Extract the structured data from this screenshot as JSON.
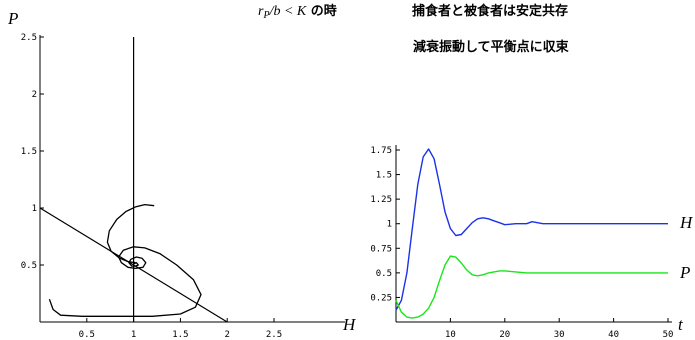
{
  "captions": {
    "condition_math": "r",
    "condition_sub": "P",
    "condition_rest": "/b < K",
    "condition_suffix": " の時",
    "line1": "捕食者と被食者は安定共存",
    "line2": "減衰振動して平衡点に収束"
  },
  "chart_data": [
    {
      "type": "line",
      "title": "",
      "xlabel": "H",
      "ylabel": "P",
      "xlim": [
        0,
        2.5
      ],
      "ylim": [
        0,
        2.5
      ],
      "xticks": [
        "0.5",
        "1",
        "1.5",
        "2",
        "2.5"
      ],
      "xtick_values": [
        0.5,
        1,
        1.5,
        2,
        2.5
      ],
      "yticks": [
        "0.5",
        "1",
        "1.5",
        "2",
        "2.5"
      ],
      "ytick_values": [
        0.5,
        1,
        1.5,
        2,
        2.5
      ],
      "equilibrium": [
        1.0,
        0.5
      ],
      "nullclines": {
        "vertical_H": 1.0,
        "line": [
          [
            0,
            1.0
          ],
          [
            2.0,
            0.0
          ]
        ]
      },
      "series": [
        {
          "color": "#000000",
          "points": [
            [
              1.22,
              1.02
            ],
            [
              1.12,
              1.03
            ],
            [
              1.02,
              1.01
            ],
            [
              0.92,
              0.97
            ],
            [
              0.82,
              0.9
            ],
            [
              0.74,
              0.8
            ],
            [
              0.72,
              0.7
            ],
            [
              0.76,
              0.62
            ],
            [
              0.85,
              0.56
            ],
            [
              0.94,
              0.53
            ],
            [
              1.02,
              0.52
            ]
          ]
        },
        {
          "color": "#000000",
          "points": [
            [
              0.1,
              0.2
            ],
            [
              0.14,
              0.11
            ],
            [
              0.22,
              0.06
            ],
            [
              0.45,
              0.05
            ],
            [
              0.8,
              0.05
            ],
            [
              1.2,
              0.05
            ],
            [
              1.5,
              0.07
            ],
            [
              1.66,
              0.13
            ],
            [
              1.72,
              0.24
            ],
            [
              1.64,
              0.37
            ],
            [
              1.46,
              0.5
            ],
            [
              1.28,
              0.6
            ],
            [
              1.12,
              0.65
            ],
            [
              1.0,
              0.66
            ],
            [
              0.89,
              0.63
            ],
            [
              0.84,
              0.57
            ],
            [
              0.87,
              0.52
            ],
            [
              0.94,
              0.48
            ],
            [
              1.02,
              0.47
            ],
            [
              1.1,
              0.48
            ],
            [
              1.13,
              0.52
            ],
            [
              1.09,
              0.56
            ],
            [
              1.03,
              0.57
            ],
            [
              0.97,
              0.55
            ],
            [
              0.95,
              0.52
            ],
            [
              0.98,
              0.49
            ],
            [
              1.02,
              0.49
            ],
            [
              1.05,
              0.5
            ],
            [
              1.03,
              0.52
            ],
            [
              1.0,
              0.51
            ]
          ]
        }
      ]
    },
    {
      "type": "line",
      "title": "",
      "xlabel": "t",
      "ylabel": "",
      "xlim": [
        0,
        50
      ],
      "ylim": [
        0,
        1.75
      ],
      "xticks": [
        "10",
        "20",
        "30",
        "40",
        "50"
      ],
      "xtick_values": [
        10,
        20,
        30,
        40,
        50
      ],
      "yticks": [
        "0.25",
        "0.5",
        "0.75",
        "1",
        "1.25",
        "1.5",
        "1.75"
      ],
      "ytick_values": [
        0.25,
        0.5,
        0.75,
        1,
        1.25,
        1.5,
        1.75
      ],
      "series": [
        {
          "name": "H",
          "color": "#1a33e6",
          "x": [
            0,
            1,
            2,
            3,
            4,
            5,
            6,
            7,
            8,
            9,
            10,
            11,
            12,
            13,
            14,
            15,
            16,
            17,
            18,
            19,
            20,
            22,
            24,
            25,
            26,
            27,
            28,
            30,
            35,
            40,
            45,
            50
          ],
          "y": [
            0.12,
            0.22,
            0.5,
            0.95,
            1.4,
            1.68,
            1.76,
            1.66,
            1.4,
            1.12,
            0.95,
            0.88,
            0.89,
            0.95,
            1.01,
            1.05,
            1.06,
            1.05,
            1.03,
            1.01,
            0.99,
            1.0,
            1.0,
            1.02,
            1.01,
            1.0,
            1.0,
            1.0,
            1.0,
            1.0,
            1.0,
            1.0
          ]
        },
        {
          "name": "P",
          "color": "#19e619",
          "x": [
            0,
            1,
            2,
            3,
            4,
            5,
            6,
            7,
            8,
            9,
            10,
            11,
            12,
            13,
            14,
            15,
            16,
            17,
            18,
            19,
            20,
            22,
            24,
            26,
            28,
            30,
            35,
            40,
            45,
            50
          ],
          "y": [
            0.22,
            0.1,
            0.05,
            0.04,
            0.05,
            0.08,
            0.14,
            0.25,
            0.42,
            0.58,
            0.67,
            0.66,
            0.6,
            0.53,
            0.48,
            0.47,
            0.48,
            0.5,
            0.51,
            0.52,
            0.52,
            0.51,
            0.5,
            0.5,
            0.5,
            0.5,
            0.5,
            0.5,
            0.5,
            0.5
          ]
        }
      ]
    }
  ]
}
